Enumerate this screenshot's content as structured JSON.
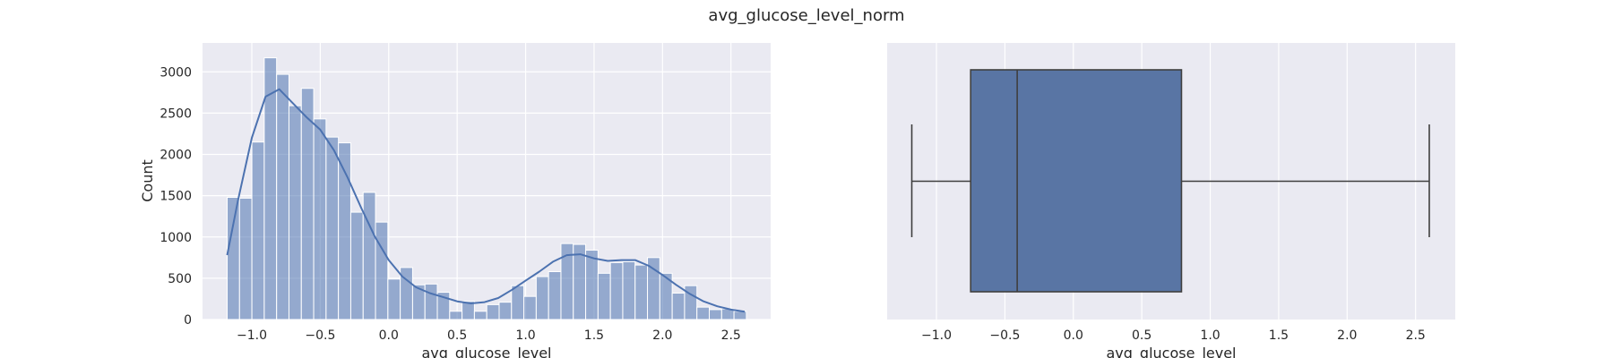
{
  "figure": {
    "suptitle": "avg_glucose_level_norm"
  },
  "chart_data": [
    {
      "type": "bar",
      "subtype": "histogram-with-kde",
      "xlabel": "avg_glucose_level",
      "ylabel": "Count",
      "xlim": [
        -1.36,
        2.79
      ],
      "ylim": [
        0,
        3350
      ],
      "xticks": [
        -1.0,
        -0.5,
        0.0,
        0.5,
        1.0,
        1.5,
        2.0,
        2.5
      ],
      "xtick_labels": [
        "−1.0",
        "−0.5",
        "0.0",
        "0.5",
        "1.0",
        "1.5",
        "2.0",
        "2.5"
      ],
      "yticks": [
        0,
        500,
        1000,
        1500,
        2000,
        2500,
        3000
      ],
      "ytick_labels": [
        "0",
        "500",
        "1000",
        "1500",
        "2000",
        "2500",
        "3000"
      ],
      "grid": true,
      "bins": {
        "start": -1.18,
        "width": 0.0903,
        "counts": [
          1480,
          1470,
          2150,
          3170,
          2970,
          2590,
          2800,
          2430,
          2210,
          2140,
          1300,
          1540,
          1180,
          490,
          630,
          420,
          430,
          330,
          100,
          220,
          100,
          180,
          210,
          410,
          280,
          520,
          580,
          920,
          910,
          840,
          560,
          690,
          700,
          660,
          750,
          560,
          320,
          410,
          150,
          120,
          130,
          100
        ]
      },
      "kde": {
        "x": [
          -1.18,
          -1.1,
          -1.0,
          -0.9,
          -0.8,
          -0.7,
          -0.6,
          -0.5,
          -0.4,
          -0.3,
          -0.2,
          -0.1,
          0.0,
          0.1,
          0.2,
          0.3,
          0.4,
          0.5,
          0.6,
          0.7,
          0.8,
          0.9,
          1.0,
          1.1,
          1.2,
          1.3,
          1.4,
          1.5,
          1.6,
          1.7,
          1.8,
          1.9,
          2.0,
          2.1,
          2.2,
          2.3,
          2.4,
          2.5,
          2.6
        ],
        "y": [
          780,
          1450,
          2200,
          2700,
          2790,
          2620,
          2450,
          2300,
          2050,
          1720,
          1350,
          1000,
          720,
          520,
          390,
          320,
          270,
          220,
          195,
          210,
          260,
          360,
          470,
          580,
          700,
          780,
          790,
          740,
          710,
          720,
          720,
          650,
          540,
          420,
          310,
          220,
          160,
          120,
          95
        ]
      },
      "color": "#4c72b0"
    },
    {
      "type": "boxplot",
      "xlabel": "avg_glucose_level",
      "xlim": [
        -1.36,
        2.79
      ],
      "xticks": [
        -1.0,
        -0.5,
        0.0,
        0.5,
        1.0,
        1.5,
        2.0,
        2.5
      ],
      "xtick_labels": [
        "−1.0",
        "−0.5",
        "0.0",
        "0.5",
        "1.0",
        "1.5",
        "2.0",
        "2.5"
      ],
      "grid": true,
      "stats": {
        "whisker_low": -1.18,
        "q1": -0.75,
        "median": -0.41,
        "q3": 0.79,
        "whisker_high": 2.6
      },
      "color": "#4c72b0"
    }
  ]
}
